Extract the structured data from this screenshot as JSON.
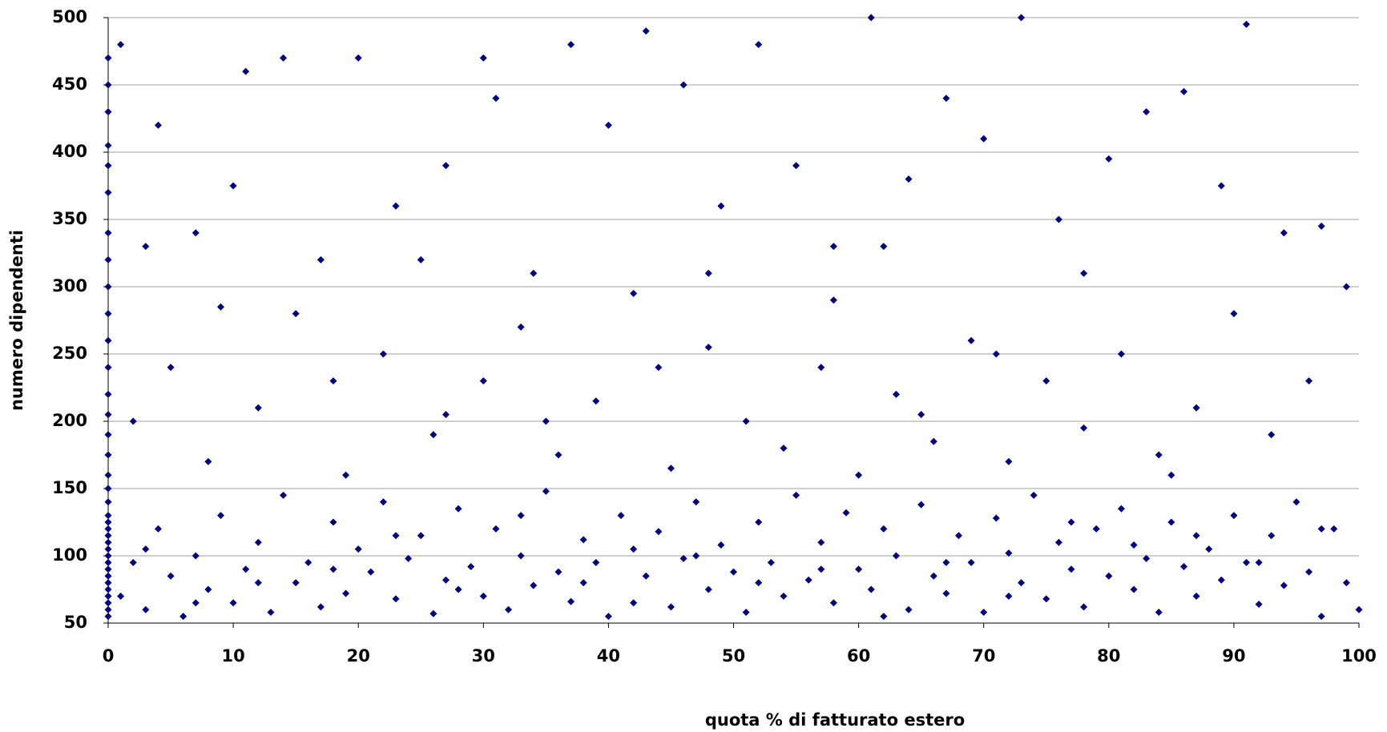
{
  "chart_data": {
    "type": "scatter",
    "x_label": "quota % di fatturato estero",
    "y_label": "numero dipendenti",
    "color": "#000080",
    "xlim": [
      0,
      100
    ],
    "xticks": [
      0,
      10,
      20,
      30,
      40,
      50,
      60,
      70,
      80,
      90,
      100
    ],
    "ylim": [
      50,
      500
    ],
    "yticks": [
      50,
      100,
      150,
      200,
      250,
      300,
      350,
      400,
      450,
      500
    ],
    "grid": true,
    "x": [
      0,
      0,
      0,
      0,
      0,
      0,
      0,
      0,
      0,
      0,
      0,
      0,
      0,
      0,
      0,
      0,
      0,
      0,
      0,
      0,
      0,
      0,
      0,
      0,
      0,
      0,
      0,
      0,
      0,
      0,
      0,
      0,
      0,
      0,
      0,
      1,
      2,
      3,
      4,
      5,
      6,
      7,
      8,
      9,
      10,
      11,
      12,
      13,
      14,
      15,
      16,
      17,
      18,
      19,
      20,
      21,
      22,
      23,
      24,
      25,
      26,
      27,
      28,
      29,
      30,
      31,
      32,
      33,
      34,
      35,
      36,
      37,
      38,
      39,
      40,
      41,
      42,
      43,
      44,
      45,
      46,
      47,
      48,
      49,
      50,
      51,
      52,
      53,
      54,
      55,
      56,
      57,
      58,
      59,
      60,
      61,
      62,
      63,
      64,
      65,
      66,
      67,
      68,
      69,
      70,
      71,
      72,
      73,
      74,
      75,
      76,
      77,
      78,
      79,
      80,
      81,
      82,
      83,
      84,
      85,
      86,
      87,
      88,
      89,
      90,
      91,
      92,
      93,
      94,
      95,
      96,
      97,
      98,
      99,
      100,
      3,
      7,
      12,
      18,
      23,
      28,
      33,
      38,
      42,
      47,
      52,
      57,
      62,
      67,
      72,
      77,
      82,
      87,
      92,
      97,
      2,
      5,
      8,
      12,
      15,
      19,
      22,
      26,
      30,
      33,
      36,
      39,
      42,
      45,
      48,
      51,
      54,
      57,
      60,
      63,
      66,
      69,
      72,
      75,
      78,
      81,
      84,
      87,
      90,
      93,
      96,
      9,
      27,
      44,
      58,
      71,
      85,
      18,
      35,
      65,
      1,
      4,
      7,
      11,
      14,
      17,
      20,
      23,
      27,
      31,
      34,
      37,
      40,
      43,
      46,
      49,
      52,
      55,
      58,
      61,
      64,
      67,
      70,
      73,
      76,
      80,
      83,
      86,
      89,
      91,
      94,
      97,
      3,
      25,
      48,
      62,
      78,
      99,
      10,
      30
    ],
    "values": [
      55,
      60,
      65,
      70,
      75,
      80,
      85,
      90,
      95,
      100,
      105,
      110,
      115,
      120,
      125,
      130,
      140,
      150,
      160,
      175,
      190,
      205,
      220,
      240,
      260,
      280,
      300,
      320,
      340,
      370,
      390,
      405,
      430,
      450,
      470,
      70,
      95,
      60,
      120,
      85,
      55,
      100,
      75,
      130,
      65,
      90,
      110,
      58,
      145,
      80,
      95,
      62,
      125,
      72,
      105,
      88,
      140,
      68,
      98,
      115,
      57,
      82,
      135,
      92,
      70,
      120,
      60,
      100,
      78,
      148,
      88,
      66,
      112,
      95,
      55,
      130,
      105,
      85,
      118,
      62,
      98,
      140,
      75,
      108,
      88,
      58,
      125,
      95,
      70,
      145,
      82,
      110,
      65,
      132,
      90,
      75,
      120,
      100,
      60,
      138,
      85,
      72,
      115,
      95,
      58,
      128,
      102,
      80,
      145,
      68,
      110,
      90,
      62,
      120,
      85,
      135,
      75,
      98,
      58,
      125,
      92,
      70,
      105,
      82,
      130,
      95,
      64,
      115,
      78,
      140,
      88,
      55,
      120,
      80,
      60,
      105,
      65,
      80,
      90,
      115,
      75,
      130,
      80,
      65,
      100,
      80,
      90,
      55,
      95,
      70,
      125,
      108,
      115,
      95,
      120,
      200,
      240,
      170,
      210,
      280,
      160,
      250,
      190,
      230,
      270,
      175,
      215,
      295,
      165,
      255,
      200,
      180,
      240,
      160,
      220,
      185,
      260,
      170,
      230,
      195,
      250,
      175,
      210,
      280,
      190,
      230,
      285,
      205,
      240,
      290,
      250,
      160,
      230,
      200,
      205,
      480,
      420,
      340,
      460,
      470,
      320,
      470,
      360,
      390,
      440,
      310,
      480,
      420,
      490,
      450,
      360,
      480,
      390,
      330,
      500,
      380,
      440,
      410,
      500,
      350,
      395,
      430,
      445,
      375,
      495,
      340,
      345,
      330,
      320,
      310,
      330,
      310,
      300,
      375,
      470
    ]
  }
}
